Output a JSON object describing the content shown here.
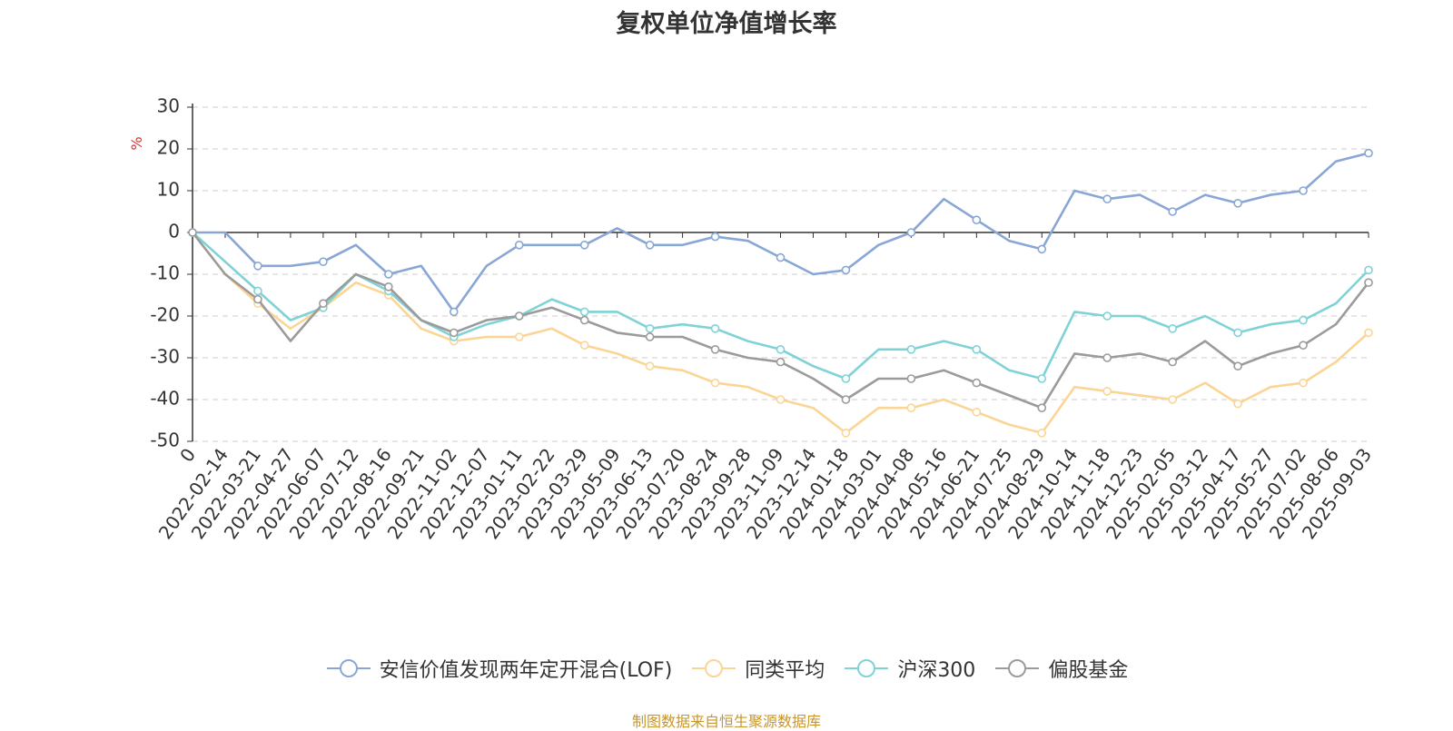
{
  "title": "复权单位净值增长率",
  "footer": "制图数据来自恒生聚源数据库",
  "colors": {
    "fund": "#88a6d6",
    "peer": "#fbd595",
    "hs300": "#7fd3d6",
    "equity": "#9b9b9b",
    "unit": "#e03030"
  },
  "chart_data": {
    "type": "line",
    "ylabel": "%",
    "ylim": [
      -50,
      30
    ],
    "yticks": [
      30,
      20,
      10,
      0,
      -10,
      -20,
      -30,
      -40,
      -50
    ],
    "grid": true,
    "legend_position": "bottom",
    "x": [
      "0",
      "2022-02-14",
      "2022-03-21",
      "2022-04-27",
      "2022-06-07",
      "2022-07-12",
      "2022-08-16",
      "2022-09-21",
      "2022-11-02",
      "2022-12-07",
      "2023-01-11",
      "2023-02-22",
      "2023-03-29",
      "2023-05-09",
      "2023-06-13",
      "2023-07-20",
      "2023-08-24",
      "2023-09-28",
      "2023-11-09",
      "2023-12-14",
      "2024-01-18",
      "2024-03-01",
      "2024-04-08",
      "2024-05-16",
      "2024-06-21",
      "2024-07-25",
      "2024-08-29",
      "2024-10-14",
      "2024-11-18",
      "2024-12-23",
      "2025-02-05",
      "2025-03-12",
      "2025-04-17",
      "2025-05-27",
      "2025-07-02",
      "2025-08-06",
      "2025-09-03"
    ],
    "series": [
      {
        "name": "安信价值发现两年定开混合(LOF)",
        "key": "fund",
        "values": [
          0,
          0,
          -8,
          -8,
          -7,
          -3,
          -10,
          -8,
          -19,
          -8,
          -3,
          -3,
          -3,
          1,
          -3,
          -3,
          -1,
          -2,
          -6,
          -10,
          -9,
          -3,
          0,
          8,
          3,
          -2,
          -4,
          10,
          8,
          9,
          5,
          9,
          7,
          9,
          10,
          17,
          19
        ]
      },
      {
        "name": "同类平均",
        "key": "peer",
        "values": [
          0,
          -10,
          -17,
          -23,
          -18,
          -12,
          -15,
          -23,
          -26,
          -25,
          -25,
          -23,
          -27,
          -29,
          -32,
          -33,
          -36,
          -37,
          -40,
          -42,
          -48,
          -42,
          -42,
          -40,
          -43,
          -46,
          -48,
          -37,
          -38,
          -39,
          -40,
          -36,
          -41,
          -37,
          -36,
          -31,
          -24
        ]
      },
      {
        "name": "沪深300",
        "key": "hs300",
        "values": [
          0,
          -7,
          -14,
          -21,
          -18,
          -10,
          -14,
          -21,
          -25,
          -22,
          -20,
          -16,
          -19,
          -19,
          -23,
          -22,
          -23,
          -26,
          -28,
          -32,
          -35,
          -28,
          -28,
          -26,
          -28,
          -33,
          -35,
          -19,
          -20,
          -20,
          -23,
          -20,
          -24,
          -22,
          -21,
          -17,
          -9
        ]
      },
      {
        "name": "偏股基金",
        "key": "equity",
        "values": [
          0,
          -10,
          -16,
          -26,
          -17,
          -10,
          -13,
          -21,
          -24,
          -21,
          -20,
          -18,
          -21,
          -24,
          -25,
          -25,
          -28,
          -30,
          -31,
          -35,
          -40,
          -35,
          -35,
          -33,
          -36,
          -39,
          -42,
          -29,
          -30,
          -29,
          -31,
          -26,
          -32,
          -29,
          -27,
          -22,
          -12
        ]
      }
    ]
  }
}
